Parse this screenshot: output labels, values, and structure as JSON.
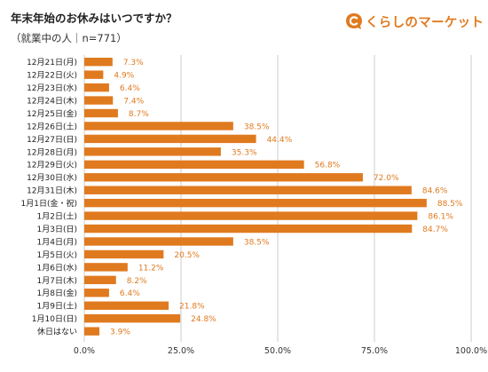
{
  "header": {
    "title": "年末年始のお休みはいつですか？",
    "subtitle": "（就業中の人｜n=771）"
  },
  "brand": {
    "name": "くらしのマーケット",
    "icon": "speech-bubble-c-logo-icon",
    "color": "#e07a1f"
  },
  "chart_data": {
    "type": "bar",
    "orientation": "horizontal",
    "categories": [
      "12月21日(月)",
      "12月22日(火)",
      "12月23日(水)",
      "12月24日(木)",
      "12月25日(金)",
      "12月26日(土)",
      "12月27日(日)",
      "12月28日(月)",
      "12月29日(火)",
      "12月30日(水)",
      "12月31日(木)",
      "1月1日(金・祝)",
      "1月2日(土)",
      "1月3日(日)",
      "1月4日(月)",
      "1月5日(火)",
      "1月6日(水)",
      "1月7日(木)",
      "1月8日(金)",
      "1月9日(土)",
      "1月10日(日)",
      "休日はない"
    ],
    "values": [
      7.3,
      4.9,
      6.4,
      7.4,
      8.7,
      38.5,
      44.4,
      35.3,
      56.8,
      72.0,
      84.6,
      88.5,
      86.1,
      84.7,
      38.5,
      20.5,
      11.2,
      8.2,
      6.4,
      21.8,
      24.8,
      3.9
    ],
    "value_labels": [
      "7.3%",
      "4.9%",
      "6.4%",
      "7.4%",
      "8.7%",
      "38.5%",
      "44.4%",
      "35.3%",
      "56.8%",
      "72.0%",
      "84.6%",
      "88.5%",
      "86.1%",
      "84.7%",
      "38.5%",
      "20.5%",
      "11.2%",
      "8.2%",
      "6.4%",
      "21.8%",
      "24.8%",
      "3.9%"
    ],
    "xlim": [
      0,
      100
    ],
    "xticks": [
      0,
      25,
      50,
      75,
      100
    ],
    "xtick_labels": [
      "0.0%",
      "25.0%",
      "50.0%",
      "75.0%",
      "100.0%"
    ],
    "grid": true,
    "bar_color": "#e07a1f",
    "label_color": "#e07a1f",
    "grid_color": "#cccccc"
  }
}
